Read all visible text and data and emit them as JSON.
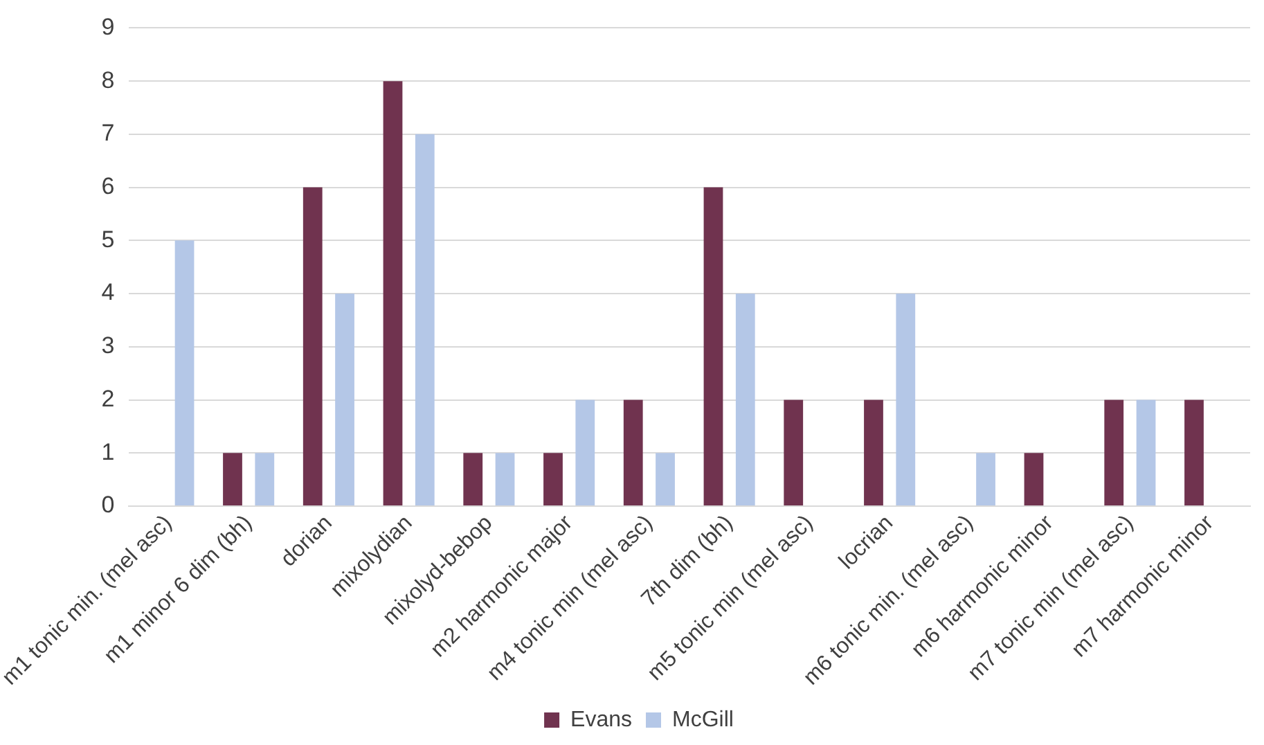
{
  "chart_data": {
    "type": "bar",
    "categories": [
      "m1 tonic min. (mel asc)",
      "m1 minor 6 dim (bh)",
      "dorian",
      "mixolydian",
      "mixolyd-bebop",
      "m2 harmonic major",
      "m4 tonic min (mel asc)",
      "7th dim (bh)",
      "m5 tonic min (mel asc)",
      "locrian",
      "m6 tonic min. (mel asc)",
      "m6 harmonic minor",
      "m7 tonic min (mel asc)",
      "m7 harmonic minor"
    ],
    "series": [
      {
        "name": "Evans",
        "color": "#70334f",
        "values": [
          0,
          1,
          6,
          8,
          1,
          1,
          2,
          6,
          2,
          2,
          0,
          1,
          2,
          2
        ]
      },
      {
        "name": "McGill",
        "color": "#b4c7e7",
        "values": [
          5,
          1,
          4,
          7,
          1,
          2,
          1,
          4,
          0,
          4,
          1,
          0,
          2,
          0
        ]
      }
    ],
    "ylim": [
      0,
      9
    ],
    "yticks": [
      0,
      1,
      2,
      3,
      4,
      5,
      6,
      7,
      8,
      9
    ],
    "grid": "y",
    "legend": "bottom"
  }
}
